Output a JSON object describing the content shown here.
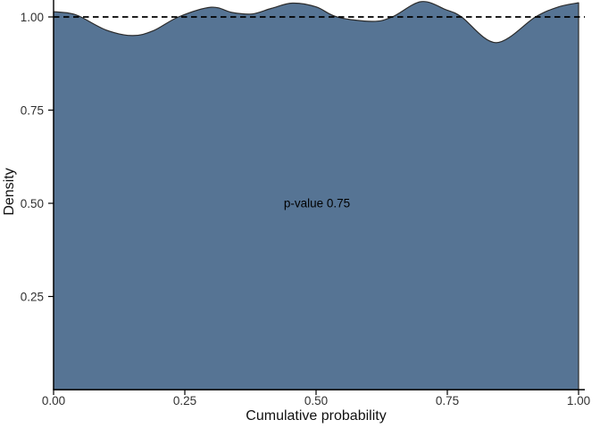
{
  "chart_data": {
    "type": "area",
    "title": "",
    "xlabel": "Cumulative probability",
    "ylabel": "Density",
    "annotation": {
      "text": "p-value 0.75",
      "x": 0.5,
      "y": 0.5
    },
    "xlim": [
      0,
      1
    ],
    "ylim": [
      0,
      1.045
    ],
    "grid": false,
    "legend": false,
    "x_ticks": {
      "values": [
        0,
        0.25,
        0.5,
        0.75,
        1
      ],
      "labels": [
        "0.00",
        "0.25",
        "0.50",
        "0.75",
        "1.00"
      ]
    },
    "y_ticks": {
      "values": [
        0.25,
        0.5,
        0.75,
        1
      ],
      "labels": [
        "0.25",
        "0.50",
        "0.75",
        "1.00"
      ]
    },
    "reference_line": {
      "y": 1.0,
      "style": "dashed"
    },
    "colors": {
      "fill": "#567494",
      "outline": "#2b2b2b",
      "axis": "#000000",
      "text": "#303030",
      "dashed_line": "#000000"
    },
    "series": [
      {
        "name": "density",
        "points": [
          [
            0.0,
            1.014
          ],
          [
            0.03,
            1.01
          ],
          [
            0.052,
            1.0
          ],
          [
            0.1,
            0.965
          ],
          [
            0.15,
            0.95
          ],
          [
            0.19,
            0.963
          ],
          [
            0.238,
            1.0
          ],
          [
            0.3,
            1.026
          ],
          [
            0.34,
            1.012
          ],
          [
            0.378,
            1.008
          ],
          [
            0.415,
            1.023
          ],
          [
            0.455,
            1.037
          ],
          [
            0.5,
            1.027
          ],
          [
            0.54,
            1.0
          ],
          [
            0.607,
            0.988
          ],
          [
            0.645,
            1.0
          ],
          [
            0.7,
            1.041
          ],
          [
            0.748,
            1.019
          ],
          [
            0.777,
            1.0
          ],
          [
            0.843,
            0.931
          ],
          [
            0.918,
            1.0
          ],
          [
            0.962,
            1.027
          ],
          [
            1.0,
            1.038
          ]
        ]
      }
    ]
  }
}
